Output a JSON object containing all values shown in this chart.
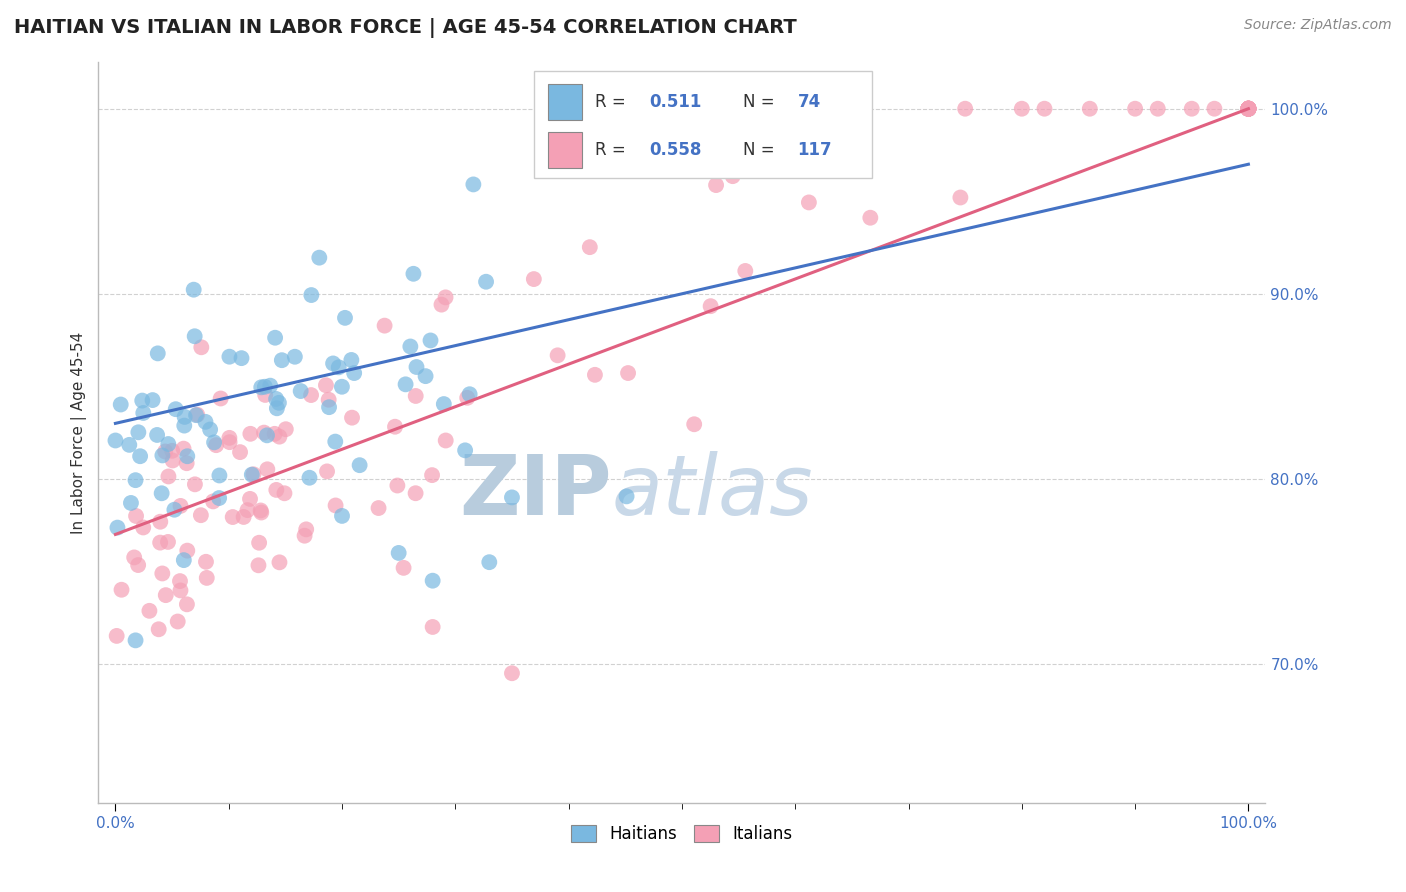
{
  "title": "HAITIAN VS ITALIAN IN LABOR FORCE | AGE 45-54 CORRELATION CHART",
  "source_text": "Source: ZipAtlas.com",
  "ylabel": "In Labor Force | Age 45-54",
  "y_tick_labels": [
    "70.0%",
    "80.0%",
    "90.0%",
    "100.0%"
  ],
  "y_tick_values": [
    0.7,
    0.8,
    0.9,
    1.0
  ],
  "legend_r_haitian": "R =  0.511",
  "legend_n_haitian": "N = 74",
  "legend_r_italian": "R = 0.558",
  "legend_n_italian": "N = 117",
  "haitian_color": "#7ab8e0",
  "italian_color": "#f4a0b5",
  "haitian_line_color": "#4472c4",
  "italian_line_color": "#e06080",
  "tick_color": "#4472c4",
  "title_fontsize": 14,
  "label_fontsize": 11,
  "tick_fontsize": 11,
  "source_fontsize": 10
}
